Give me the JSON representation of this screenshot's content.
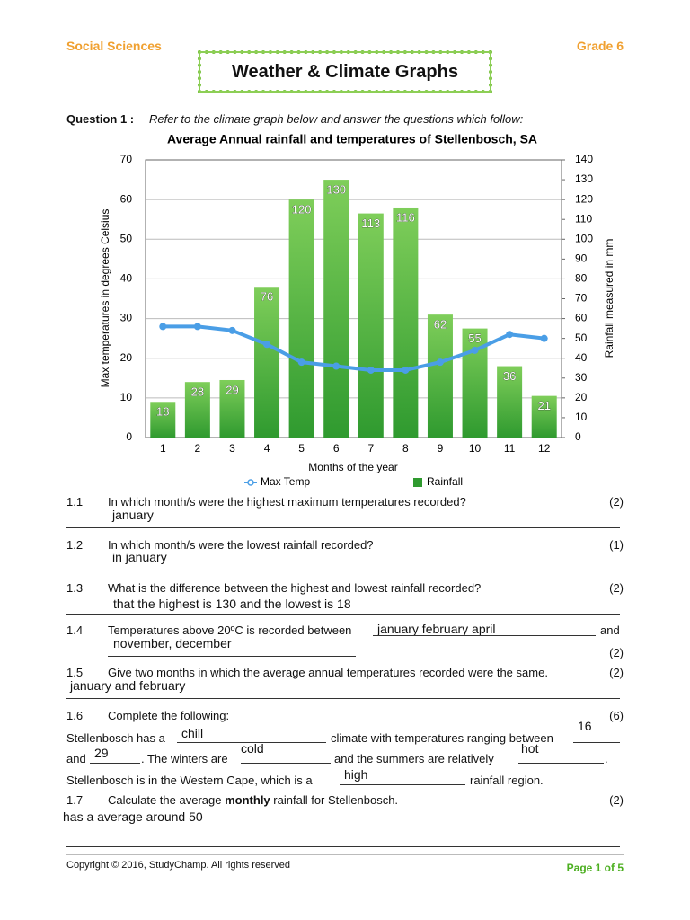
{
  "header": {
    "subject": "Social Sciences",
    "grade": "Grade 6",
    "title": "Weather & Climate Graphs"
  },
  "question": {
    "label": "Question 1 :",
    "instruction": "Refer to the climate graph below and answer the questions which follow:"
  },
  "chart_data": {
    "type": "combo",
    "title": "Average Annual rainfall and temperatures of Stellenbosch, SA",
    "x_label": "Months of the year",
    "y_label": "Max temperatures  in degrees Celsius",
    "y2_label": "Rainfall measured in mm",
    "categories": [
      "1",
      "2",
      "3",
      "4",
      "5",
      "6",
      "7",
      "8",
      "9",
      "10",
      "11",
      "12"
    ],
    "series": [
      {
        "name": "Max Temp",
        "type": "line",
        "axis": "y",
        "color": "#4a9ee6",
        "values": [
          28,
          28,
          27,
          23.5,
          19,
          18,
          17,
          17,
          19,
          22,
          26,
          25
        ]
      },
      {
        "name": "Rainfall",
        "type": "bar",
        "axis": "y2",
        "color": "#2f9a2f",
        "values": [
          18,
          28,
          29,
          76,
          120,
          130,
          113,
          116,
          62,
          55,
          36,
          21
        ]
      }
    ],
    "ylim": [
      0,
      70
    ],
    "yticks": [
      0,
      10,
      20,
      30,
      40,
      50,
      60,
      70
    ],
    "y2lim": [
      0,
      140
    ],
    "y2ticks": [
      0,
      10,
      20,
      30,
      40,
      50,
      60,
      70,
      80,
      90,
      100,
      110,
      120,
      130,
      140
    ],
    "grid": true,
    "legend": "bottom"
  },
  "questions": [
    {
      "number": "1.1",
      "text": "In which month/s were the highest maximum temperatures recorded?",
      "marks": "(2)",
      "answer": "january"
    },
    {
      "number": "1.2",
      "text": "In which month/s were the lowest rainfall recorded?",
      "marks": "(1)",
      "answer": "in january"
    },
    {
      "number": "1.3",
      "text": "What is the difference between the highest and lowest rainfall recorded?",
      "marks": "(2)",
      "answer": "that the highest is 130 and the lowest is 18"
    },
    {
      "number": "1.4",
      "text": "Temperatures above 20ºC is recorded between",
      "answer": "january february april",
      "joiner": "and",
      "answer2": "november, december",
      "marks": "(2)"
    },
    {
      "number": "1.5",
      "text": "Give two months in which the average annual temperatures recorded were the same.",
      "marks": "(2)",
      "answer": "january and february"
    },
    {
      "number": "1.6",
      "text": "Complete the following:",
      "marks": "(6)",
      "parts": [
        "Stellenbosch has a",
        "chill",
        "climate with temperatures ranging between",
        "16",
        "and",
        "29",
        ". The winters are",
        "cold",
        "and the summers are relatively",
        "hot",
        ".",
        "Stellenbosch is in the Western Cape, which is a",
        "high",
        "rainfall region."
      ]
    },
    {
      "number": "1.7",
      "text": "Calculate the average",
      "bold": "monthly",
      "text_after": "rainfall for Stellenbosch.",
      "marks": "(2)",
      "answer": "has a average around 50"
    }
  ],
  "footer": {
    "copyright": "Copyright © 2016, StudyChamp. All rights reserved",
    "page": "Page 1 of 5"
  }
}
